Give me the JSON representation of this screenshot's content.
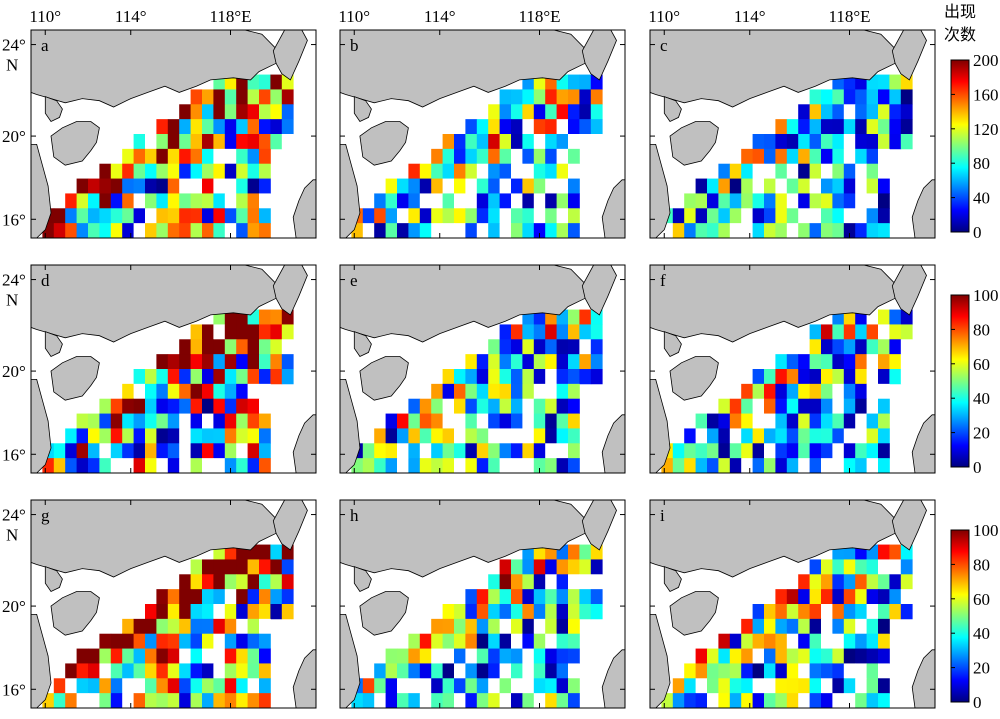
{
  "map": {
    "lon_ticks": [
      "110°",
      "114°",
      "118°E"
    ],
    "lat_ticks": [
      "24°",
      "N",
      "20°",
      "16°"
    ],
    "colors": {
      "land": "#c0c0c0",
      "sea": "#ffffff",
      "colormap": [
        "#00007f",
        "#0000ff",
        "#007fff",
        "#00ffff",
        "#7fff7f",
        "#ffff00",
        "#ff7f00",
        "#ff0000",
        "#7f0000"
      ]
    }
  },
  "colorbar_unit": [
    "出现",
    "次数"
  ],
  "colorbars": [
    {
      "row": 1,
      "ticks": [
        "200",
        "160",
        "120",
        "80",
        "40",
        "0"
      ],
      "vmax": 200
    },
    {
      "row": 2,
      "ticks": [
        "100",
        "80",
        "60",
        "40",
        "20",
        "0"
      ],
      "vmax": 100
    },
    {
      "row": 3,
      "ticks": [
        "100",
        "80",
        "60",
        "40",
        "20",
        "0"
      ],
      "vmax": 100
    }
  ],
  "panels": [
    {
      "label": "a",
      "row": 1,
      "col": 1,
      "vmax": 200,
      "mean": 0.62,
      "seed": 11
    },
    {
      "label": "b",
      "row": 1,
      "col": 2,
      "vmax": 200,
      "mean": 0.42,
      "seed": 23
    },
    {
      "label": "c",
      "row": 1,
      "col": 3,
      "vmax": 200,
      "mean": 0.36,
      "seed": 37
    },
    {
      "label": "d",
      "row": 2,
      "col": 1,
      "vmax": 100,
      "mean": 0.66,
      "seed": 41
    },
    {
      "label": "e",
      "row": 2,
      "col": 2,
      "vmax": 100,
      "mean": 0.4,
      "seed": 53
    },
    {
      "label": "f",
      "row": 2,
      "col": 3,
      "vmax": 100,
      "mean": 0.38,
      "seed": 67
    },
    {
      "label": "g",
      "row": 3,
      "col": 1,
      "vmax": 100,
      "mean": 0.7,
      "seed": 71
    },
    {
      "label": "h",
      "row": 3,
      "col": 2,
      "vmax": 100,
      "mean": 0.4,
      "seed": 83
    },
    {
      "label": "i",
      "row": 3,
      "col": 3,
      "vmax": 100,
      "mean": 0.4,
      "seed": 97
    }
  ]
}
